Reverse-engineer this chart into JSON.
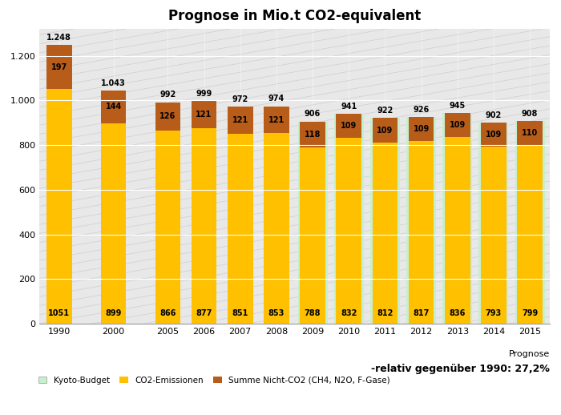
{
  "title": "Prognose in Mio.t CO2-equivalent",
  "years": [
    "1990",
    "2000",
    "2005",
    "2006",
    "2007",
    "2008",
    "2009",
    "2010",
    "2011",
    "2012",
    "2013",
    "2014",
    "2015"
  ],
  "x_positions": [
    0,
    1.5,
    3,
    4,
    5,
    6,
    7,
    8,
    9,
    10,
    11,
    12,
    13
  ],
  "co2": [
    1051,
    899,
    866,
    877,
    851,
    853,
    788,
    832,
    812,
    817,
    836,
    793,
    799
  ],
  "nicht_co2": [
    197,
    144,
    126,
    121,
    121,
    121,
    118,
    109,
    109,
    109,
    109,
    109,
    110
  ],
  "totals_labels": [
    "1.248",
    "1.043",
    "992",
    "999",
    "972",
    "974",
    "906",
    "941",
    "922",
    "926",
    "945",
    "902",
    "908"
  ],
  "totals": [
    1248,
    1043,
    992,
    999,
    972,
    974,
    906,
    941,
    922,
    926,
    945,
    902,
    908
  ],
  "kyoto_indices": [
    6,
    7,
    8,
    9,
    10,
    11,
    12
  ],
  "color_co2": "#FFC000",
  "color_nicht_co2": "#B85C1A",
  "color_kyoto": "#C6EFCE",
  "color_bg": "#E8E8E8",
  "color_hatch": "#D0D0D0",
  "bar_width": 0.7,
  "xlim_left": -0.55,
  "xlim_right": 13.55,
  "ylim": [
    0,
    1320
  ],
  "yticks": [
    0,
    200,
    400,
    600,
    800,
    1000,
    1200
  ],
  "annotation_prognose": "Prognose",
  "annotation_relativ": "-relativ gegenüber 1990: 27,2%",
  "legend_kyoto": "Kyoto-Budget",
  "legend_co2": "CO2-Emissionen",
  "legend_nicht_co2": "Summe Nicht-CO2 (CH4, N2O, F-Gase)",
  "font_size_title": 12,
  "font_size_axis": 8,
  "font_size_bar_label": 7,
  "font_size_annotation": 8
}
